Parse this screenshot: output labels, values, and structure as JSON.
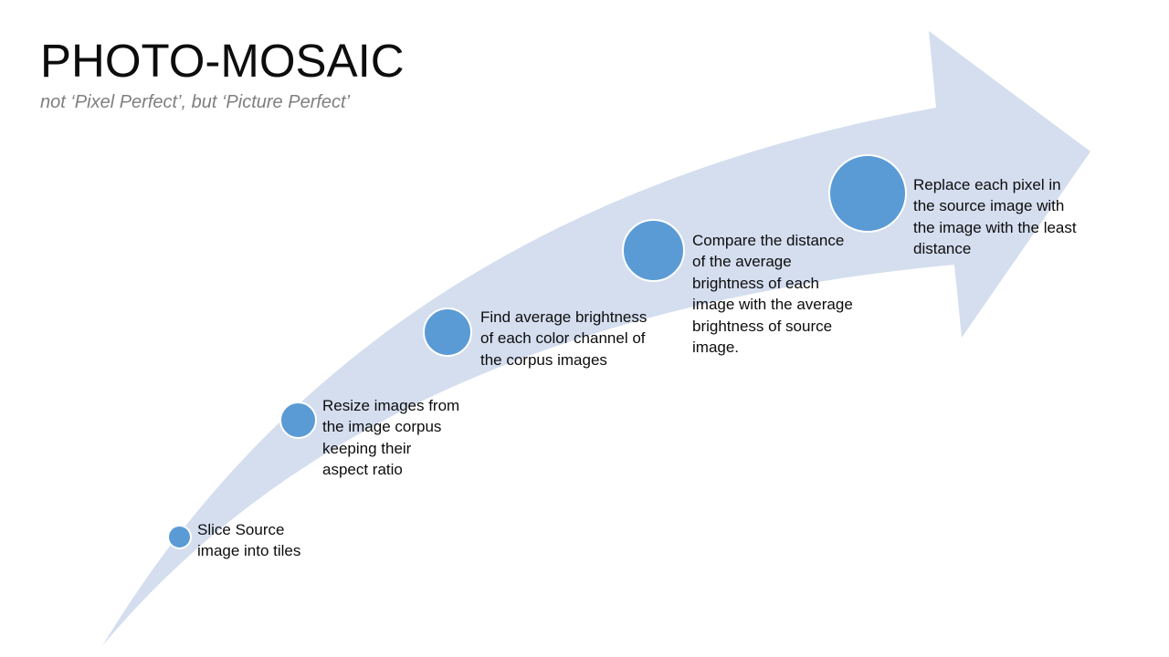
{
  "slide": {
    "title": "PHOTO-MOSAIC",
    "subtitle": "not ‘Pixel Perfect’, but ‘Picture Perfect’"
  },
  "colors": {
    "arrow_fill": "#d4deef",
    "circle_fill": "#5b9bd5",
    "title_color": "#0d0d0d",
    "subtitle_color": "#7f7f7f"
  },
  "steps": [
    {
      "text": "Slice Source image into tiles"
    },
    {
      "text": "Resize images from the image corpus keeping their aspect ratio"
    },
    {
      "text": "Find average brightness of each color channel of the corpus images"
    },
    {
      "text": "Compare the distance of the average brightness of each image with the average brightness of source image."
    },
    {
      "text": "Replace each pixel in the source image with the image with the least distance"
    }
  ]
}
